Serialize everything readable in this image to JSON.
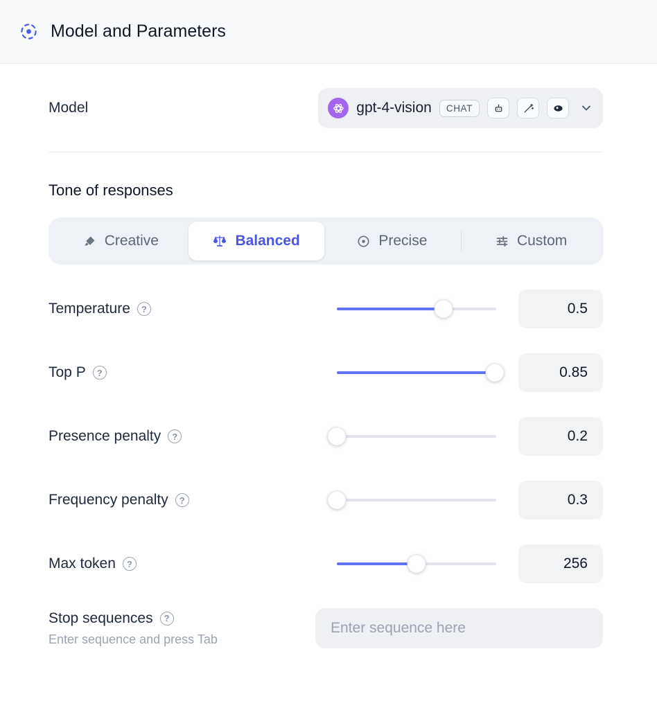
{
  "colors": {
    "accent": "#4a56e2",
    "slider_fill": "#6375f2",
    "openai_purple": "#a566ef",
    "header_bg": "#f8fafc",
    "field_bg": "#eef0f4"
  },
  "header": {
    "title": "Model and Parameters",
    "icon": "model-scan-icon"
  },
  "model": {
    "label": "Model",
    "selected_model": "gpt-4-vision",
    "type_badge": "CHAT",
    "provider_icon": "openai-logo",
    "capability_icons": [
      "robot-icon",
      "wand-icon",
      "vision-icon"
    ]
  },
  "tone": {
    "heading": "Tone of responses",
    "options": [
      {
        "label": "Creative",
        "icon": "brush-icon",
        "selected": false
      },
      {
        "label": "Balanced",
        "icon": "scales-icon",
        "selected": true
      },
      {
        "label": "Precise",
        "icon": "precise-icon",
        "selected": false
      },
      {
        "label": "Custom",
        "icon": "sliders-icon",
        "selected": false
      }
    ]
  },
  "parameters": [
    {
      "label": "Temperature",
      "value": "0.5",
      "percent": 67
    },
    {
      "label": "Top P",
      "value": "0.85",
      "percent": 99
    },
    {
      "label": "Presence penalty",
      "value": "0.2",
      "percent": 0
    },
    {
      "label": "Frequency penalty",
      "value": "0.3",
      "percent": 0
    },
    {
      "label": "Max token",
      "value": "256",
      "percent": 50
    }
  ],
  "stop": {
    "label": "Stop sequences",
    "hint": "Enter sequence and press Tab",
    "placeholder": "Enter sequence here"
  }
}
